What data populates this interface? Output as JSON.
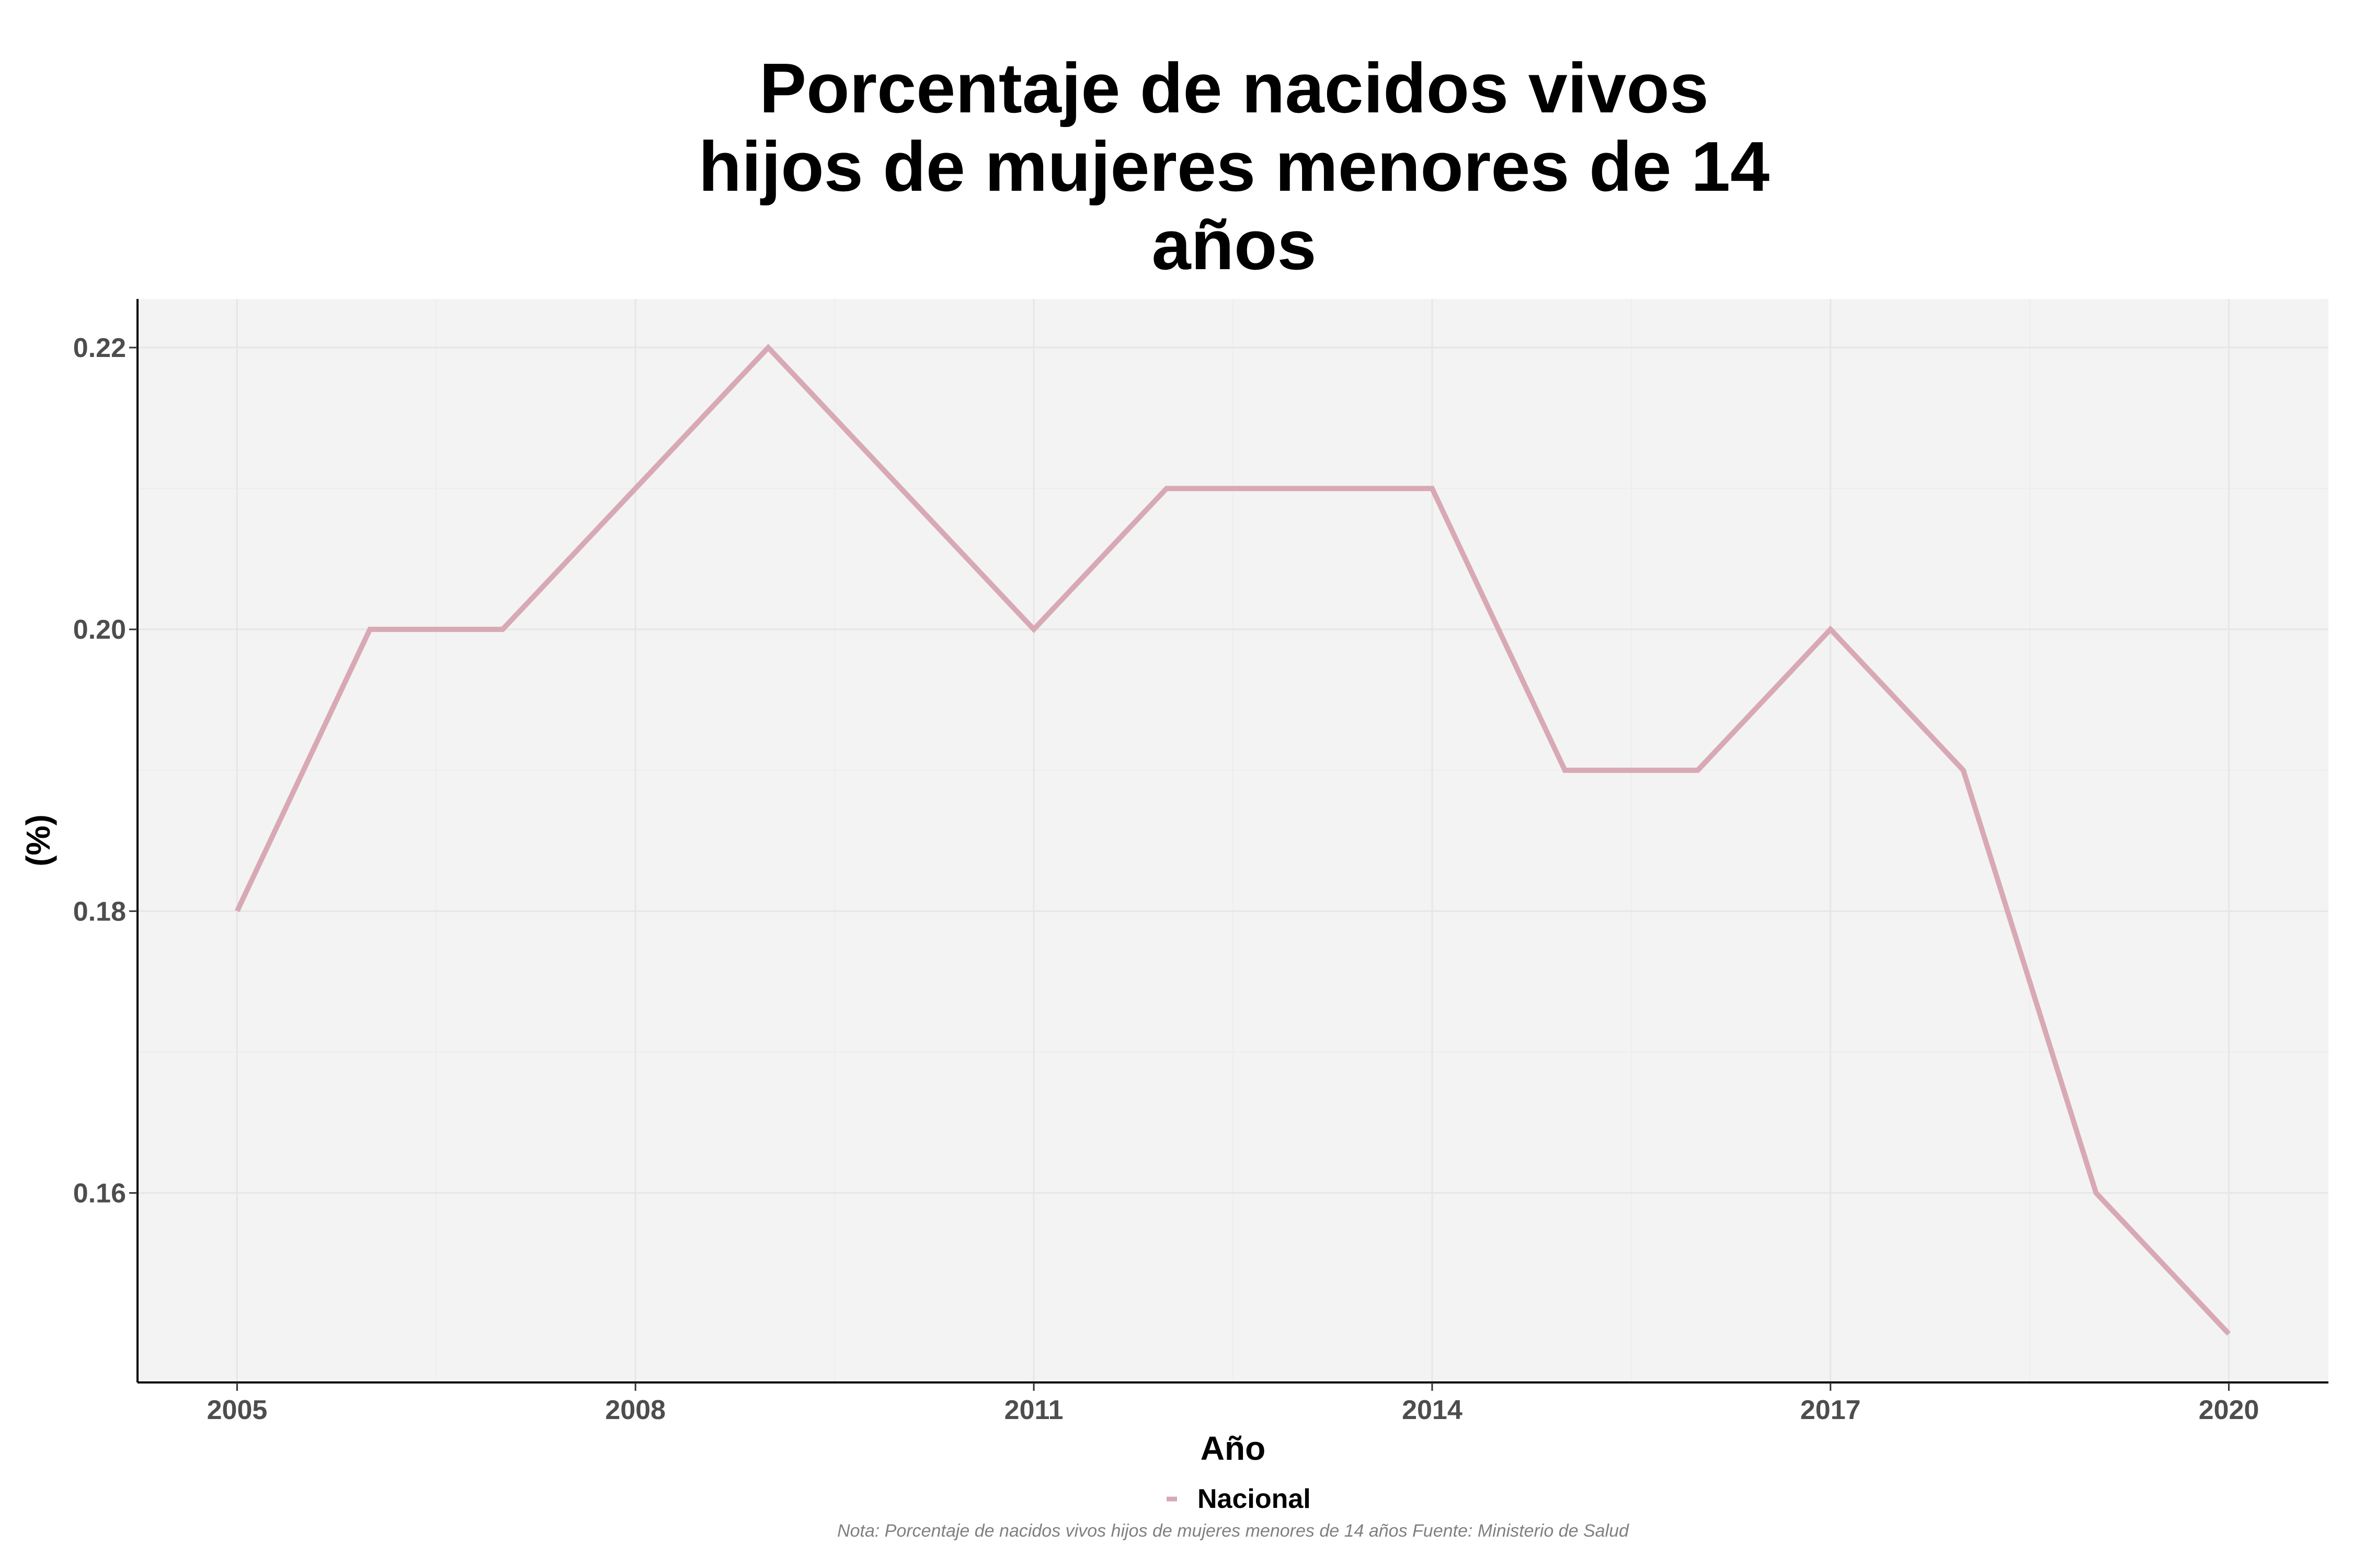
{
  "chart_data": {
    "type": "line",
    "title": [
      "Porcentaje de nacidos vivos",
      "hijos de mujeres menores de 14",
      "años"
    ],
    "xlabel": "Año",
    "ylabel": "(%)",
    "x": [
      2005,
      2006,
      2007,
      2008,
      2009,
      2010,
      2011,
      2012,
      2013,
      2014,
      2015,
      2016,
      2017,
      2018,
      2019,
      2020
    ],
    "series": [
      {
        "name": "Nacional",
        "color": "#d8a9b4",
        "values": [
          0.18,
          0.2,
          0.2,
          0.21,
          0.22,
          0.21,
          0.2,
          0.21,
          0.21,
          0.21,
          0.19,
          0.19,
          0.2,
          0.19,
          0.16,
          0.15
        ]
      }
    ],
    "xticks": [
      2005,
      2008,
      2011,
      2014,
      2017,
      2020
    ],
    "xtick_labels": [
      "2005",
      "2008",
      "2011",
      "2014",
      "2017",
      "2020"
    ],
    "yticks": [
      0.16,
      0.18,
      0.2,
      0.22
    ],
    "ytick_labels": [
      "0.16",
      "0.18",
      "0.20",
      "0.22"
    ],
    "xlim": [
      2004.25,
      2020.75
    ],
    "ylim": [
      0.14655,
      0.22345
    ],
    "grid": true,
    "panel_background": "#f3f3f3",
    "legend_position": "bottom",
    "caption": "Nota: Porcentaje de nacidos vivos hijos de mujeres menores de 14 años Fuente: Ministerio de Salud"
  }
}
